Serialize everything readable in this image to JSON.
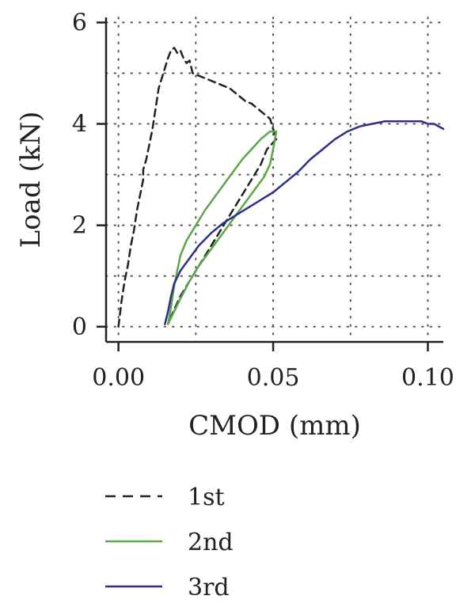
{
  "chart_data": {
    "type": "line",
    "title": "",
    "xlabel": "CMOD (mm)",
    "ylabel": "Load (kN)",
    "xlim": [
      -0.004,
      0.105
    ],
    "ylim": [
      -0.3,
      6.1
    ],
    "xticks": [
      0.0,
      0.05,
      0.1
    ],
    "xtick_labels": [
      "0.00",
      "0.05",
      "0.10"
    ],
    "yticks": [
      0,
      2,
      4,
      6
    ],
    "ytick_labels": [
      "0",
      "2",
      "4",
      "6"
    ],
    "grid": "dotted",
    "grid_x": [
      0.0,
      0.025,
      0.05,
      0.075,
      0.1
    ],
    "grid_y": [
      0,
      1,
      2,
      3,
      4,
      5,
      6
    ],
    "legend_position": "bottom",
    "series": [
      {
        "name": "1st",
        "color": "#222222",
        "style": "dashed",
        "x": [
          0.0,
          0.001,
          0.002,
          0.003,
          0.004,
          0.005,
          0.006,
          0.007,
          0.008,
          0.008,
          0.009,
          0.01,
          0.011,
          0.012,
          0.013,
          0.015,
          0.016,
          0.017,
          0.018,
          0.019,
          0.02,
          0.021,
          0.022,
          0.023,
          0.024,
          0.026,
          0.028,
          0.03,
          0.032,
          0.034,
          0.036,
          0.038,
          0.04,
          0.041,
          0.043,
          0.045,
          0.047,
          0.049,
          0.05,
          0.051,
          0.048,
          0.046,
          0.044,
          0.04,
          0.036,
          0.032,
          0.028,
          0.024,
          0.02,
          0.017,
          0.016
        ],
        "y": [
          0.0,
          0.5,
          0.9,
          1.2,
          1.6,
          1.9,
          2.3,
          2.6,
          2.9,
          3.1,
          3.3,
          3.6,
          3.9,
          4.3,
          4.7,
          5.1,
          5.3,
          5.45,
          5.5,
          5.4,
          5.45,
          5.3,
          5.2,
          5.25,
          5.0,
          4.95,
          4.9,
          4.85,
          4.8,
          4.75,
          4.7,
          4.6,
          4.5,
          4.45,
          4.4,
          4.3,
          4.2,
          4.1,
          3.9,
          3.7,
          3.5,
          3.2,
          3.0,
          2.6,
          2.2,
          1.8,
          1.4,
          1.0,
          0.6,
          0.2,
          0.1
        ]
      },
      {
        "name": "2nd",
        "color": "#5aa846",
        "style": "solid",
        "x": [
          0.016,
          0.017,
          0.018,
          0.019,
          0.02,
          0.022,
          0.025,
          0.028,
          0.031,
          0.034,
          0.037,
          0.04,
          0.043,
          0.046,
          0.048,
          0.049,
          0.05,
          0.051,
          0.05,
          0.049,
          0.047,
          0.044,
          0.041,
          0.038,
          0.035,
          0.032,
          0.029,
          0.026,
          0.023,
          0.02,
          0.018,
          0.016
        ],
        "y": [
          0.05,
          0.4,
          0.8,
          1.1,
          1.4,
          1.7,
          2.0,
          2.3,
          2.55,
          2.8,
          3.05,
          3.3,
          3.5,
          3.7,
          3.8,
          3.85,
          3.85,
          3.85,
          3.5,
          3.2,
          2.95,
          2.7,
          2.45,
          2.2,
          1.95,
          1.7,
          1.45,
          1.2,
          0.9,
          0.55,
          0.3,
          0.05
        ]
      },
      {
        "name": "3rd",
        "color": "#2e2f8c",
        "style": "solid",
        "x": [
          0.015,
          0.016,
          0.017,
          0.018,
          0.02,
          0.023,
          0.026,
          0.03,
          0.034,
          0.038,
          0.042,
          0.046,
          0.05,
          0.054,
          0.058,
          0.062,
          0.066,
          0.07,
          0.074,
          0.078,
          0.082,
          0.086,
          0.09,
          0.094,
          0.098,
          0.1,
          0.102,
          0.105
        ],
        "y": [
          0.05,
          0.3,
          0.6,
          0.85,
          1.1,
          1.35,
          1.6,
          1.85,
          2.05,
          2.2,
          2.35,
          2.5,
          2.65,
          2.85,
          3.05,
          3.3,
          3.5,
          3.7,
          3.85,
          3.95,
          4.0,
          4.05,
          4.05,
          4.05,
          4.05,
          4.0,
          4.0,
          3.9
        ]
      }
    ]
  }
}
